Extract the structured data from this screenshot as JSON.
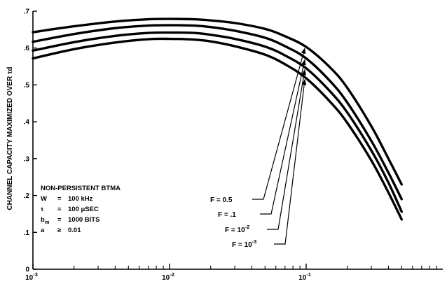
{
  "chart_data": {
    "type": "line",
    "title": "",
    "xlabel": "",
    "ylabel": "CHANNEL CAPACITY MAXIMIZED OVER τd",
    "x_scale": "log",
    "xlim": [
      0.001,
      1
    ],
    "ylim": [
      0,
      0.7
    ],
    "x_ticks": [
      {
        "value": 0.001,
        "base": "10",
        "exp": "-3"
      },
      {
        "value": 0.01,
        "base": "10",
        "exp": "-2"
      },
      {
        "value": 0.1,
        "base": "10",
        "exp": "-1"
      }
    ],
    "y_ticks": [
      {
        "value": 0,
        "label": "0"
      },
      {
        "value": 0.1,
        "label": ".1"
      },
      {
        "value": 0.2,
        "label": ".2"
      },
      {
        "value": 0.3,
        "label": ".3"
      },
      {
        "value": 0.4,
        "label": ".4"
      },
      {
        "value": 0.5,
        "label": ".5"
      },
      {
        "value": 0.6,
        "label": ".6"
      },
      {
        "value": 0.7,
        "label": ".7"
      }
    ],
    "grid": false,
    "series": [
      {
        "name": "F = 0.5",
        "label_parts": {
          "text": "F = 0.5",
          "exp": ""
        },
        "x": [
          0.001,
          0.002,
          0.004,
          0.007,
          0.01,
          0.015,
          0.02,
          0.03,
          0.05,
          0.07,
          0.1,
          0.15,
          0.2,
          0.3,
          0.4,
          0.5
        ],
        "y": [
          0.643,
          0.659,
          0.672,
          0.678,
          0.679,
          0.678,
          0.675,
          0.668,
          0.652,
          0.632,
          0.603,
          0.547,
          0.492,
          0.388,
          0.3,
          0.23
        ]
      },
      {
        "name": "F = .1",
        "label_parts": {
          "text": "F = .1",
          "exp": ""
        },
        "x": [
          0.001,
          0.002,
          0.004,
          0.007,
          0.01,
          0.015,
          0.02,
          0.03,
          0.05,
          0.07,
          0.1,
          0.15,
          0.2,
          0.3,
          0.4,
          0.5
        ],
        "y": [
          0.617,
          0.638,
          0.654,
          0.661,
          0.662,
          0.661,
          0.657,
          0.647,
          0.628,
          0.605,
          0.572,
          0.51,
          0.452,
          0.348,
          0.262,
          0.19
        ]
      },
      {
        "name": "F = 10-2",
        "label_parts": {
          "text": "F = 10",
          "exp": "-2"
        },
        "x": [
          0.001,
          0.002,
          0.004,
          0.007,
          0.01,
          0.015,
          0.02,
          0.03,
          0.05,
          0.07,
          0.1,
          0.15,
          0.2,
          0.3,
          0.4,
          0.5
        ],
        "y": [
          0.593,
          0.616,
          0.633,
          0.641,
          0.642,
          0.641,
          0.636,
          0.625,
          0.604,
          0.58,
          0.545,
          0.482,
          0.425,
          0.322,
          0.235,
          0.156
        ]
      },
      {
        "name": "F = 10-3",
        "label_parts": {
          "text": "F = 10",
          "exp": "-3"
        },
        "x": [
          0.001,
          0.002,
          0.004,
          0.007,
          0.01,
          0.015,
          0.02,
          0.03,
          0.05,
          0.07,
          0.1,
          0.15,
          0.2,
          0.3,
          0.4,
          0.5
        ],
        "y": [
          0.572,
          0.597,
          0.615,
          0.624,
          0.625,
          0.623,
          0.618,
          0.605,
          0.582,
          0.556,
          0.518,
          0.454,
          0.397,
          0.295,
          0.208,
          0.135
        ]
      }
    ],
    "annotation": {
      "title": "NON-PERSISTENT BTMA",
      "lines": [
        {
          "sym": "W",
          "sub": "",
          "eq": "=",
          "val": "100 kHz"
        },
        {
          "sym": "τ",
          "sub": "",
          "eq": "=",
          "val": "100 μSEC"
        },
        {
          "sym": "b",
          "sub": "m",
          "eq": "=",
          "val": "1000 BITS"
        },
        {
          "sym": "a",
          "sub": "",
          "eq": "≥",
          "val": "0.01"
        }
      ]
    }
  }
}
